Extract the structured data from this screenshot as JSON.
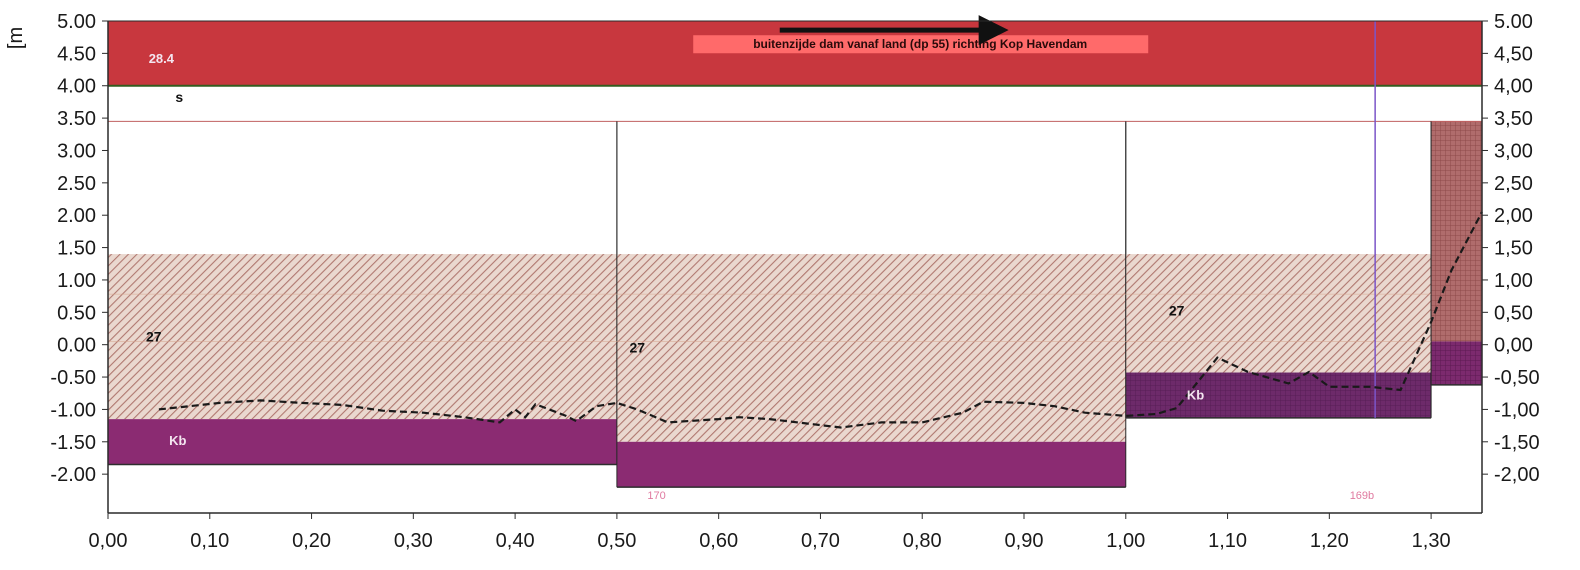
{
  "chart_data": {
    "type": "area",
    "y_unit_label": "[m",
    "xlim": [
      0.0,
      1.35
    ],
    "ylim": [
      -2.6,
      5.0
    ],
    "x_ticks": [
      "0,00",
      "0,10",
      "0,20",
      "0,30",
      "0,40",
      "0,50",
      "0,60",
      "0,70",
      "0,80",
      "0,90",
      "1,00",
      "1,10",
      "1,20",
      "1,30"
    ],
    "x_tick_values": [
      0.0,
      0.1,
      0.2,
      0.3,
      0.4,
      0.5,
      0.6,
      0.7,
      0.8,
      0.9,
      1.0,
      1.1,
      1.2,
      1.3
    ],
    "y_ticks_left": [
      "5.00",
      "4.50",
      "4.00",
      "3.50",
      "3.00",
      "2.50",
      "2.00",
      "1.50",
      "1.00",
      "0.50",
      "0.00",
      "-0.50",
      "-1.00",
      "-1.50",
      "-2.00"
    ],
    "y_ticks_right": [
      "5.00",
      "4,50",
      "4,00",
      "3,50",
      "3,00",
      "2,50",
      "2,00",
      "1,50",
      "1,00",
      "0,50",
      "0,00",
      "-0,50",
      "-1,00",
      "-1,50",
      "-2,00"
    ],
    "y_tick_values": [
      5.0,
      4.5,
      4.0,
      3.5,
      3.0,
      2.5,
      2.0,
      1.5,
      1.0,
      0.5,
      0.0,
      -0.5,
      -1.0,
      -1.5,
      -2.0
    ],
    "colors": {
      "top_layer": "#c8373e",
      "hatch_bg": "#ead8cf",
      "hatch_line": "#b07870",
      "kb": "#8b2b72",
      "kb_dark": "#6a2764",
      "kb_right": "#8c2958",
      "hatch_right_bg": "#b06c6c",
      "banner_bg": "#ff6a6a",
      "axis": "#2a2a2a",
      "arrow": "#111111",
      "purple_line": "#7b55c8"
    },
    "top_layer": {
      "x": [
        0.0,
        1.35
      ],
      "y": [
        4.0,
        5.0
      ],
      "label": "28.4"
    },
    "s_label": "s",
    "banner": {
      "text": "buitenzijde dam vanaf land (dp 55) richting Kop Havendam"
    },
    "arrow": {
      "x_from": 0.66,
      "x_to": 0.88,
      "y": 4.86
    },
    "sections": [
      {
        "x": [
          0.0,
          0.5
        ],
        "top": 3.45,
        "layer27": [
          1.4,
          -1.15
        ],
        "kb": [
          -1.15,
          -1.85
        ],
        "label27": "27",
        "label_kb": "Kb"
      },
      {
        "x": [
          0.5,
          1.0
        ],
        "top": 3.45,
        "layer27": [
          1.4,
          -1.5
        ],
        "kb": [
          -1.5,
          -2.2
        ],
        "label27": "27",
        "label_kb": ""
      },
      {
        "x": [
          1.0,
          1.3
        ],
        "top": 3.45,
        "layer27": [
          1.4,
          -0.43
        ],
        "kb": [
          -0.43,
          -1.13
        ],
        "label27": "27",
        "label_kb": "Kb"
      },
      {
        "x": [
          1.3,
          1.35
        ],
        "top": 3.45,
        "layer27": [
          3.45,
          0.05
        ],
        "kb": [
          0.05,
          -0.62
        ],
        "label27": "",
        "label_kb": ""
      }
    ],
    "section_ids": [
      "170",
      "169b"
    ],
    "purple_line_x": 1.245,
    "profile": {
      "x": [
        0.05,
        0.08,
        0.11,
        0.15,
        0.19,
        0.23,
        0.27,
        0.31,
        0.35,
        0.385,
        0.4,
        0.41,
        0.42,
        0.45,
        0.46,
        0.48,
        0.5,
        0.52,
        0.55,
        0.6,
        0.62,
        0.65,
        0.72,
        0.76,
        0.8,
        0.84,
        0.86,
        0.9,
        0.93,
        0.96,
        1.0,
        1.03,
        1.05,
        1.09,
        1.12,
        1.16,
        1.18,
        1.2,
        1.24,
        1.27,
        1.3,
        1.32,
        1.35
      ],
      "y": [
        -1.0,
        -0.95,
        -0.9,
        -0.86,
        -0.9,
        -0.93,
        -1.02,
        -1.05,
        -1.12,
        -1.2,
        -1.0,
        -1.12,
        -0.92,
        -1.1,
        -1.18,
        -0.95,
        -0.9,
        -1.0,
        -1.2,
        -1.15,
        -1.12,
        -1.15,
        -1.28,
        -1.2,
        -1.2,
        -1.05,
        -0.88,
        -0.9,
        -0.95,
        -1.05,
        -1.1,
        -1.07,
        -0.98,
        -0.2,
        -0.42,
        -0.6,
        -0.42,
        -0.65,
        -0.65,
        -0.7,
        0.35,
        1.15,
        2.05
      ]
    }
  }
}
